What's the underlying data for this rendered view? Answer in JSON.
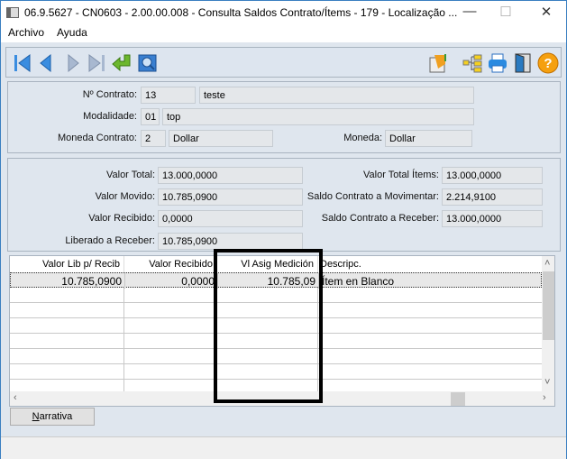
{
  "window": {
    "title": "06.9.5627 - CN0603 - 2.00.00.008 - Consulta Saldos Contrato/Ítems - 179 - Localização ...",
    "minimize": "—",
    "maximize": "☐",
    "close": "✕"
  },
  "menu": [
    "Archivo",
    "Ayuda"
  ],
  "toolbar": {
    "left_icons": [
      "first-icon",
      "previous-icon",
      "next-icon",
      "last-icon",
      "return-icon",
      "zoom-icon"
    ],
    "right_icons": [
      "report-icon",
      "tree-icon",
      "print-icon",
      "exit-icon",
      "help-icon"
    ]
  },
  "contract": {
    "numero_label": "Nº Contrato:",
    "numero": "13",
    "numero_desc": "teste",
    "modalidade_label": "Modalidade:",
    "modalidade": "01",
    "modalidade_desc": "top",
    "moeda_label": "Moneda Contrato:",
    "moeda": "2",
    "moeda_desc": "Dollar",
    "moneda_label": "Moneda:",
    "moneda": "Dollar"
  },
  "values": {
    "valor_total_label": "Valor Total:",
    "valor_total": "13.000,0000",
    "valor_movido_label": "Valor Movido:",
    "valor_movido": "10.785,0900",
    "valor_recibido_label": "Valor Recibido:",
    "valor_recibido": "0,0000",
    "liberado_label": "Liberado a Receber:",
    "liberado": "10.785,0900",
    "total_items_label": "Valor Total Ítems:",
    "total_items": "13.000,0000",
    "saldo_mov_label": "Saldo Contrato a Movimentar:",
    "saldo_mov": "2.214,9100",
    "saldo_rec_label": "Saldo Contrato a Receber:",
    "saldo_rec": "13.000,0000"
  },
  "grid": {
    "columns": [
      "Valor Lib p/ Recib",
      "Valor Recibido",
      "Vl Asig Medición",
      "Descripc."
    ],
    "rows": [
      [
        "10.785,0900",
        "0,0000",
        "10.785,09",
        "Ítem en Blanco"
      ]
    ],
    "scroll_up": "˄",
    "scroll_down": "˅",
    "scroll_left": "‹",
    "scroll_right": "›"
  },
  "narrativa_button": "Narrativa"
}
